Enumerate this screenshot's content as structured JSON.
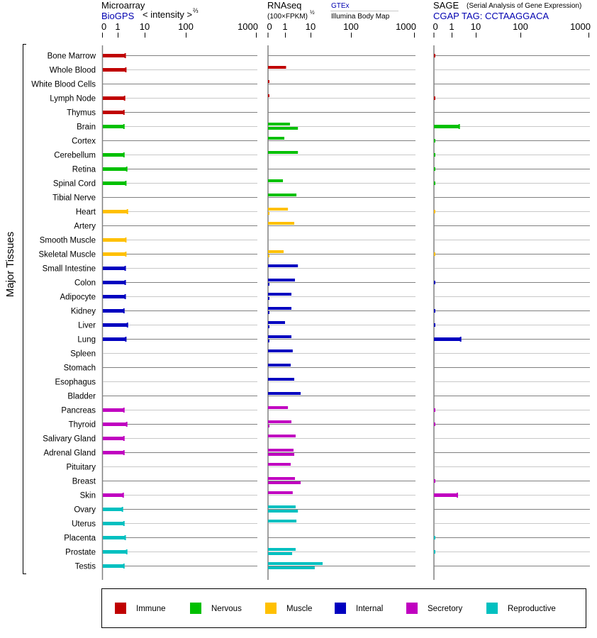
{
  "chart_data": {
    "type": "bar",
    "orientation": "horizontal",
    "y_label": "Major Tissues",
    "panels": [
      {
        "key": "microarray",
        "title": "Microarray",
        "source": "BioGPS",
        "unit_label": "< intensity >",
        "unit_exp": "⅔",
        "ticks": [
          "0",
          "1",
          "10",
          "100",
          "1000"
        ],
        "tick_values": [
          0,
          1,
          10,
          100,
          1000
        ]
      },
      {
        "key": "rnaseq",
        "title": "RNAseq",
        "unit_label": "(100×FPKM)",
        "unit_exp": "½",
        "source_1": "GTEx",
        "source_2": "Illumina Body Map",
        "ticks": [
          "0",
          "1",
          "10",
          "100",
          "1000"
        ],
        "tick_values": [
          0,
          1,
          10,
          100,
          1000
        ]
      },
      {
        "key": "sage",
        "title": "SAGE",
        "subtitle": "(Serial Analysis of Gene Expression)",
        "source": "CGAP TAG: CCTAAGGACA",
        "ticks": [
          "0",
          "1",
          "10",
          "100",
          "1000"
        ],
        "tick_values": [
          0,
          1,
          10,
          100,
          1000
        ]
      }
    ],
    "groups": {
      "Immune": "#c00000",
      "Nervous": "#00c000",
      "Muscle": "#ffc000",
      "Internal": "#0000c0",
      "Secretory": "#c000c0",
      "Reproductive": "#00c0c0"
    },
    "legend": [
      "Immune",
      "Nervous",
      "Muscle",
      "Internal",
      "Secretory",
      "Reproductive"
    ],
    "legend_position": "bottom",
    "tissues": [
      {
        "name": "Bone Marrow",
        "group": "Immune",
        "microarray": 1.9,
        "rnaseq": [],
        "sage": 0.05
      },
      {
        "name": "Whole Blood",
        "group": "Immune",
        "microarray": 2.0,
        "rnaseq": [
          1.1
        ],
        "sage": null
      },
      {
        "name": "White Blood Cells",
        "group": "Immune",
        "microarray": null,
        "rnaseq": [
          0.05
        ],
        "sage": null
      },
      {
        "name": "Lymph Node",
        "group": "Immune",
        "microarray": 1.8,
        "rnaseq": [
          0.05
        ],
        "sage": 0.05
      },
      {
        "name": "Thymus",
        "group": "Immune",
        "microarray": 1.7,
        "rnaseq": [],
        "sage": null
      },
      {
        "name": "Brain",
        "group": "Nervous",
        "microarray": 1.7,
        "rnaseq": [
          1.56,
          3.2
        ],
        "sage": 2.06
      },
      {
        "name": "Cortex",
        "group": "Nervous",
        "microarray": null,
        "rnaseq": [
          0.96
        ],
        "sage": 0.05
      },
      {
        "name": "Cerebellum",
        "group": "Nervous",
        "microarray": 1.7,
        "rnaseq": [
          3.2
        ],
        "sage": 0.05
      },
      {
        "name": "Retina",
        "group": "Nervous",
        "microarray": 2.16,
        "rnaseq": [],
        "sage": 0.05
      },
      {
        "name": "Spinal Cord",
        "group": "Nervous",
        "microarray": 2.0,
        "rnaseq": [
          0.88
        ],
        "sage": 0.05
      },
      {
        "name": "Tibial Nerve",
        "group": "Nervous",
        "microarray": null,
        "rnaseq": [
          2.8
        ],
        "sage": null
      },
      {
        "name": "Heart",
        "group": "Muscle",
        "microarray": 2.3,
        "rnaseq": [
          1.3,
          0.05
        ],
        "sage": 0.05
      },
      {
        "name": "Artery",
        "group": "Muscle",
        "microarray": null,
        "rnaseq": [
          2.3
        ],
        "sage": null
      },
      {
        "name": "Smooth Muscle",
        "group": "Muscle",
        "microarray": 2.0,
        "rnaseq": [],
        "sage": null
      },
      {
        "name": "Skeletal Muscle",
        "group": "Muscle",
        "microarray": 2.0,
        "rnaseq": [
          0.92,
          0.05
        ],
        "sage": 0.05
      },
      {
        "name": "Small Intestine",
        "group": "Internal",
        "microarray": 1.9,
        "rnaseq": [
          3.2
        ],
        "sage": null
      },
      {
        "name": "Colon",
        "group": "Internal",
        "microarray": 1.9,
        "rnaseq": [
          2.45,
          0.05
        ],
        "sage": 0.05
      },
      {
        "name": "Adipocyte",
        "group": "Internal",
        "microarray": 1.9,
        "rnaseq": [
          1.78,
          0.05
        ],
        "sage": null
      },
      {
        "name": "Kidney",
        "group": "Internal",
        "microarray": 1.7,
        "rnaseq": [
          1.78,
          0.05
        ],
        "sage": 0.05
      },
      {
        "name": "Liver",
        "group": "Internal",
        "microarray": 2.3,
        "rnaseq": [
          1.0,
          0.05
        ],
        "sage": 0.05
      },
      {
        "name": "Lung",
        "group": "Internal",
        "microarray": 2.0,
        "rnaseq": [
          1.78,
          0.05
        ],
        "sage": 2.36
      },
      {
        "name": "Spleen",
        "group": "Internal",
        "microarray": null,
        "rnaseq": [
          2.0
        ],
        "sage": null
      },
      {
        "name": "Stomach",
        "group": "Internal",
        "microarray": null,
        "rnaseq": [
          1.67
        ],
        "sage": null
      },
      {
        "name": "Esophagus",
        "group": "Internal",
        "microarray": null,
        "rnaseq": [
          2.3
        ],
        "sage": null
      },
      {
        "name": "Bladder",
        "group": "Internal",
        "microarray": null,
        "rnaseq": [
          4.1
        ],
        "sage": null
      },
      {
        "name": "Pancreas",
        "group": "Secretory",
        "microarray": 1.7,
        "rnaseq": [
          1.3
        ],
        "sage": 0.05
      },
      {
        "name": "Thyroid",
        "group": "Secretory",
        "microarray": 2.16,
        "rnaseq": [
          1.78,
          0.05
        ],
        "sage": 0.05
      },
      {
        "name": "Salivary Gland",
        "group": "Secretory",
        "microarray": 1.7,
        "rnaseq": [
          2.6
        ],
        "sage": null
      },
      {
        "name": "Adrenal Gland",
        "group": "Secretory",
        "microarray": 1.7,
        "rnaseq": [
          2.15,
          2.3
        ],
        "sage": null
      },
      {
        "name": "Pituitary",
        "group": "Secretory",
        "microarray": null,
        "rnaseq": [
          1.67
        ],
        "sage": null
      },
      {
        "name": "Breast",
        "group": "Secretory",
        "microarray": null,
        "rnaseq": [
          2.45,
          4.1
        ],
        "sage": 0.05
      },
      {
        "name": "Skin",
        "group": "Secretory",
        "microarray": 1.6,
        "rnaseq": [
          2.0
        ],
        "sage": 1.72
      },
      {
        "name": "Ovary",
        "group": "Reproductive",
        "microarray": 1.5,
        "rnaseq": [
          2.6,
          3.2
        ],
        "sage": null
      },
      {
        "name": "Uterus",
        "group": "Reproductive",
        "microarray": 1.7,
        "rnaseq": [
          2.8
        ],
        "sage": null
      },
      {
        "name": "Placenta",
        "group": "Reproductive",
        "microarray": 1.9,
        "rnaseq": [],
        "sage": 0.05
      },
      {
        "name": "Prostate",
        "group": "Reproductive",
        "microarray": 2.16,
        "rnaseq": [
          2.6,
          1.9
        ],
        "sage": 0.05
      },
      {
        "name": "Testis",
        "group": "Reproductive",
        "microarray": 1.7,
        "rnaseq": [
          19.9,
          12.7
        ],
        "sage": null
      }
    ]
  }
}
